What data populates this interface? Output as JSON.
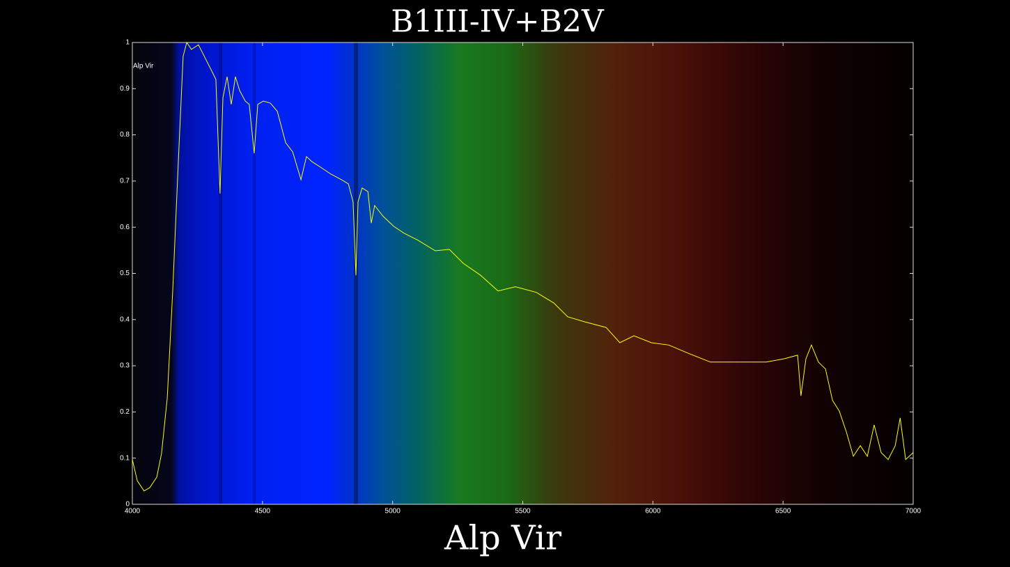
{
  "chart_data": {
    "type": "line",
    "title": "B1III-IV+B2V",
    "xlabel": "Alp Vir",
    "annotation": "Alp Vir",
    "color": "#ffff00",
    "x": [
      4000,
      4019,
      4045,
      4067,
      4094,
      4112,
      4134,
      4155,
      4177,
      4195,
      4209,
      4227,
      4254,
      4281,
      4308,
      4321,
      4337,
      4348,
      4364,
      4380,
      4396,
      4412,
      4434,
      4449,
      4468,
      4482,
      4503,
      4530,
      4557,
      4589,
      4616,
      4648,
      4669,
      4690,
      4723,
      4763,
      4803,
      4830,
      4848,
      4859,
      4867,
      4883,
      4905,
      4918,
      4931,
      4963,
      5004,
      5044,
      5097,
      5164,
      5218,
      5271,
      5338,
      5405,
      5472,
      5552,
      5619,
      5673,
      5739,
      5820,
      5873,
      5927,
      5994,
      6061,
      6141,
      6221,
      6288,
      6369,
      6435,
      6502,
      6556,
      6569,
      6588,
      6609,
      6636,
      6663,
      6690,
      6716,
      6743,
      6770,
      6797,
      6824,
      6850,
      6877,
      6904,
      6931,
      6950,
      6971,
      7000
    ],
    "values": [
      0.097,
      0.051,
      0.029,
      0.036,
      0.059,
      0.11,
      0.23,
      0.46,
      0.745,
      0.97,
      1.0,
      0.985,
      0.995,
      0.965,
      0.935,
      0.92,
      0.673,
      0.88,
      0.926,
      0.866,
      0.926,
      0.896,
      0.873,
      0.866,
      0.76,
      0.866,
      0.873,
      0.869,
      0.851,
      0.783,
      0.763,
      0.703,
      0.753,
      0.742,
      0.73,
      0.715,
      0.703,
      0.694,
      0.655,
      0.496,
      0.655,
      0.685,
      0.677,
      0.609,
      0.647,
      0.624,
      0.602,
      0.587,
      0.572,
      0.549,
      0.552,
      0.522,
      0.496,
      0.462,
      0.471,
      0.459,
      0.436,
      0.406,
      0.395,
      0.383,
      0.35,
      0.365,
      0.35,
      0.345,
      0.326,
      0.308,
      0.308,
      0.308,
      0.308,
      0.315,
      0.323,
      0.235,
      0.315,
      0.345,
      0.308,
      0.293,
      0.225,
      0.202,
      0.157,
      0.104,
      0.127,
      0.104,
      0.172,
      0.112,
      0.097,
      0.127,
      0.187,
      0.097,
      0.112
    ],
    "xlim": [
      4000,
      7000
    ],
    "xticks": [
      4000,
      4500,
      5000,
      5500,
      6000,
      6500,
      7000
    ],
    "ylim": [
      0,
      1
    ],
    "yticks": [
      0,
      0.1,
      0.2,
      0.3,
      0.4,
      0.5,
      0.6,
      0.7,
      0.8,
      0.9,
      1
    ]
  }
}
